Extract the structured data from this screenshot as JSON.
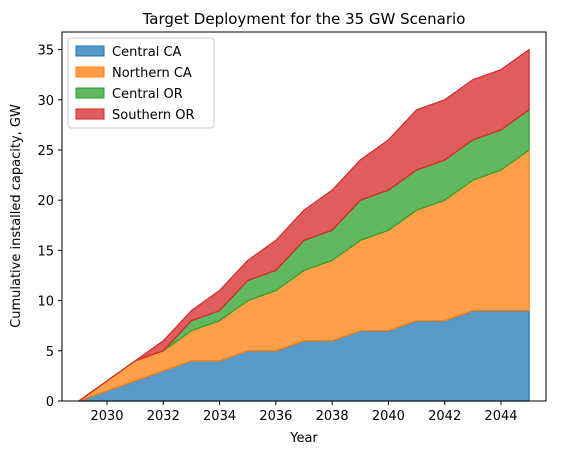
{
  "chart_data": {
    "type": "area",
    "stacked": true,
    "title": "Target Deployment for the 35 GW Scenario",
    "xlabel": "Year",
    "ylabel": "Cumulative installed capacity, GW",
    "xlim": [
      2028.4,
      2045.6
    ],
    "ylim": [
      0,
      36.75
    ],
    "xticks": [
      2030,
      2032,
      2034,
      2036,
      2038,
      2040,
      2042,
      2044
    ],
    "yticks": [
      0,
      5,
      10,
      15,
      20,
      25,
      30,
      35
    ],
    "legend": "top-left",
    "grid": false,
    "x": [
      2029,
      2030,
      2031,
      2032,
      2033,
      2034,
      2035,
      2036,
      2037,
      2038,
      2039,
      2040,
      2041,
      2042,
      2043,
      2044,
      2045
    ],
    "series": [
      {
        "name": "Central CA",
        "color": "#1f77b4",
        "values": [
          0,
          1,
          2,
          3,
          4,
          4,
          5,
          5,
          6,
          6,
          7,
          7,
          8,
          8,
          9,
          9,
          9
        ]
      },
      {
        "name": "Northern CA",
        "color": "#ff7f0e",
        "values": [
          0,
          1,
          2,
          2,
          3,
          4,
          5,
          6,
          7,
          8,
          9,
          10,
          11,
          12,
          13,
          14,
          16
        ]
      },
      {
        "name": "Central OR",
        "color": "#2ca02c",
        "values": [
          0,
          0,
          0,
          0,
          1,
          1,
          2,
          2,
          3,
          3,
          4,
          4,
          4,
          4,
          4,
          4,
          4
        ]
      },
      {
        "name": "Southern OR",
        "color": "#d62728",
        "values": [
          0,
          0,
          0,
          1,
          1,
          2,
          2,
          3,
          3,
          4,
          4,
          5,
          6,
          6,
          6,
          6,
          6
        ]
      }
    ]
  }
}
